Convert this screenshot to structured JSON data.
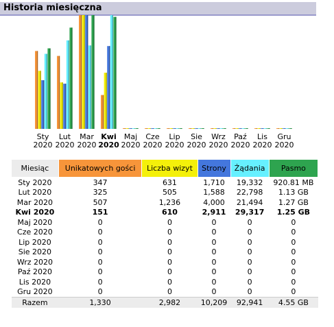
{
  "header": {
    "title": "Historia miesięczna"
  },
  "colors": {
    "visitors": "#f7953a",
    "visits": "#f4f00a",
    "pages": "#4477dd",
    "hits": "#66f0ff",
    "bandwidth": "#2ea44f",
    "header_bg": "#ccccdd",
    "row_bg": "#ececec"
  },
  "table": {
    "headers": [
      "Miesiąc",
      "Unikatowych gości",
      "Liczba wizyt",
      "Strony",
      "Żądania",
      "Pasmo"
    ],
    "rows": [
      [
        "Sty 2020",
        "347",
        "631",
        "1,710",
        "19,332",
        "920.81 MB"
      ],
      [
        "Lut 2020",
        "325",
        "505",
        "1,588",
        "22,798",
        "1.13 GB"
      ],
      [
        "Mar 2020",
        "507",
        "1,236",
        "4,000",
        "21,494",
        "1.27 GB"
      ],
      [
        "Kwi 2020",
        "151",
        "610",
        "2,911",
        "29,317",
        "1.25 GB"
      ],
      [
        "Maj 2020",
        "0",
        "0",
        "0",
        "0",
        "0"
      ],
      [
        "Cze 2020",
        "0",
        "0",
        "0",
        "0",
        "0"
      ],
      [
        "Lip 2020",
        "0",
        "0",
        "0",
        "0",
        "0"
      ],
      [
        "Sie 2020",
        "0",
        "0",
        "0",
        "0",
        "0"
      ],
      [
        "Wrz 2020",
        "0",
        "0",
        "0",
        "0",
        "0"
      ],
      [
        "Paź 2020",
        "0",
        "0",
        "0",
        "0",
        "0"
      ],
      [
        "Lis 2020",
        "0",
        "0",
        "0",
        "0",
        "0"
      ],
      [
        "Gru 2020",
        "0",
        "0",
        "0",
        "0",
        "0"
      ]
    ],
    "total": [
      "Razem",
      "1,330",
      "2,982",
      "10,209",
      "92,941",
      "4.55 GB"
    ],
    "current_row": 3
  },
  "chart_data": {
    "type": "bar",
    "categories": [
      "Sty",
      "Lut",
      "Mar",
      "Kwi",
      "Maj",
      "Cze",
      "Lip",
      "Sie",
      "Wrz",
      "Paź",
      "Lis",
      "Gru"
    ],
    "years": [
      "2020",
      "2020",
      "2020",
      "2020",
      "2020",
      "2020",
      "2020",
      "2020",
      "2020",
      "2020",
      "2020",
      "2020"
    ],
    "current_index": 3,
    "series": [
      {
        "key": "visitors",
        "values": [
          347,
          325,
          507,
          151,
          0,
          0,
          0,
          0,
          0,
          0,
          0,
          0
        ]
      },
      {
        "key": "visits",
        "values": [
          631,
          505,
          1236,
          610,
          0,
          0,
          0,
          0,
          0,
          0,
          0,
          0
        ]
      },
      {
        "key": "pages",
        "values": [
          1710,
          1588,
          4000,
          2911,
          0,
          0,
          0,
          0,
          0,
          0,
          0,
          0
        ]
      },
      {
        "key": "hits",
        "values": [
          19332,
          22798,
          21494,
          29317,
          0,
          0,
          0,
          0,
          0,
          0,
          0,
          0
        ]
      },
      {
        "key": "bandwidth",
        "unit": "MB",
        "values": [
          920.81,
          1157.1,
          1300.5,
          1280,
          0,
          0,
          0,
          0,
          0,
          0,
          0,
          0
        ]
      }
    ]
  }
}
